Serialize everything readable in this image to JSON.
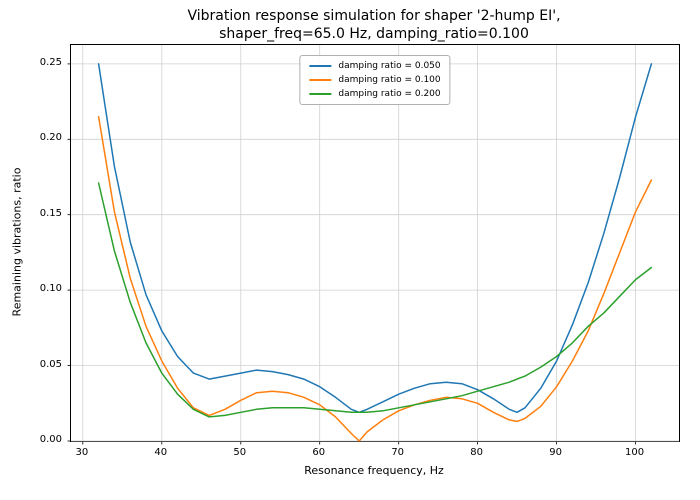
{
  "title": {
    "line1": "Vibration response simulation for shaper '2-hump EI',",
    "line2": "shaper_freq=65.0 Hz, damping_ratio=0.100"
  },
  "chart_data": {
    "type": "line",
    "title": "Vibration response simulation for shaper '2-hump EI', shaper_freq=65.0 Hz, damping_ratio=0.100",
    "xlabel": "Resonance frequency, Hz",
    "ylabel": "Remaining vibrations, ratio",
    "xlim": [
      28.5,
      105.5
    ],
    "ylim": [
      0,
      0.2625
    ],
    "grid": true,
    "legend_position": "upper center",
    "x_ticks": [
      30,
      40,
      50,
      60,
      70,
      80,
      90,
      100
    ],
    "x_tick_labels": [
      "30",
      "40",
      "50",
      "60",
      "70",
      "80",
      "90",
      "100"
    ],
    "y_ticks": [
      0,
      0.05,
      0.1,
      0.15,
      0.2,
      0.25
    ],
    "y_tick_labels": [
      "0.00",
      "0.05",
      "0.10",
      "0.15",
      "0.20",
      "0.25"
    ],
    "x_shared": [
      32,
      34,
      36,
      38,
      40,
      42,
      44,
      46,
      48,
      50,
      52,
      54,
      56,
      58,
      60,
      62,
      64,
      65,
      66,
      68,
      70,
      72,
      74,
      76,
      78,
      80,
      82,
      84,
      85,
      86,
      88,
      90,
      92,
      94,
      96,
      98,
      100,
      102
    ],
    "series": [
      {
        "name": "damping ratio = 0.050",
        "color": "#1f77b4",
        "y": [
          0.25,
          0.182,
          0.132,
          0.097,
          0.073,
          0.056,
          0.045,
          0.041,
          0.043,
          0.045,
          0.047,
          0.046,
          0.044,
          0.041,
          0.036,
          0.029,
          0.021,
          0.019,
          0.021,
          0.026,
          0.031,
          0.035,
          0.038,
          0.039,
          0.038,
          0.034,
          0.028,
          0.021,
          0.019,
          0.022,
          0.035,
          0.053,
          0.077,
          0.105,
          0.138,
          0.175,
          0.215,
          0.25
        ]
      },
      {
        "name": "damping ratio = 0.100",
        "color": "#ff7f0e",
        "y": [
          0.215,
          0.152,
          0.108,
          0.076,
          0.053,
          0.035,
          0.022,
          0.017,
          0.021,
          0.027,
          0.032,
          0.033,
          0.032,
          0.029,
          0.024,
          0.016,
          0.005,
          0.0,
          0.006,
          0.014,
          0.02,
          0.024,
          0.027,
          0.029,
          0.028,
          0.025,
          0.019,
          0.014,
          0.013,
          0.015,
          0.023,
          0.036,
          0.053,
          0.073,
          0.098,
          0.125,
          0.152,
          0.173
        ]
      },
      {
        "name": "damping ratio = 0.200",
        "color": "#2ca02c",
        "y": [
          0.171,
          0.126,
          0.092,
          0.065,
          0.045,
          0.031,
          0.021,
          0.016,
          0.017,
          0.019,
          0.021,
          0.022,
          0.022,
          0.022,
          0.021,
          0.02,
          0.019,
          0.019,
          0.019,
          0.02,
          0.022,
          0.024,
          0.026,
          0.028,
          0.03,
          0.033,
          0.036,
          0.039,
          0.041,
          0.043,
          0.049,
          0.056,
          0.065,
          0.076,
          0.085,
          0.096,
          0.107,
          0.115
        ]
      }
    ],
    "grid_color": "#d0d0d0",
    "spine_color": "#000000"
  }
}
